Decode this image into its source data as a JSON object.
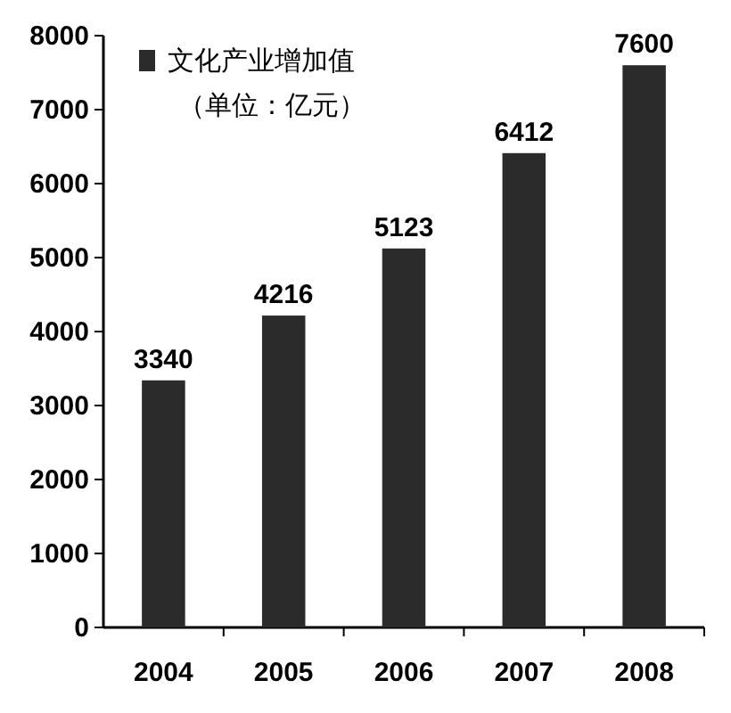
{
  "chart_data": {
    "type": "bar",
    "categories": [
      "2004",
      "2005",
      "2006",
      "2007",
      "2008"
    ],
    "series": [
      {
        "name": "文化产业增加值",
        "color": "#2b2b2b",
        "values": [
          3340,
          4216,
          5123,
          6412,
          7600
        ]
      }
    ],
    "annotations": [
      "（单位：亿元）"
    ],
    "ylim": [
      0,
      8000
    ],
    "yticks": [
      0,
      1000,
      2000,
      3000,
      4000,
      5000,
      6000,
      7000,
      8000
    ],
    "data_labels": true,
    "legend": "top left",
    "grid": false
  }
}
